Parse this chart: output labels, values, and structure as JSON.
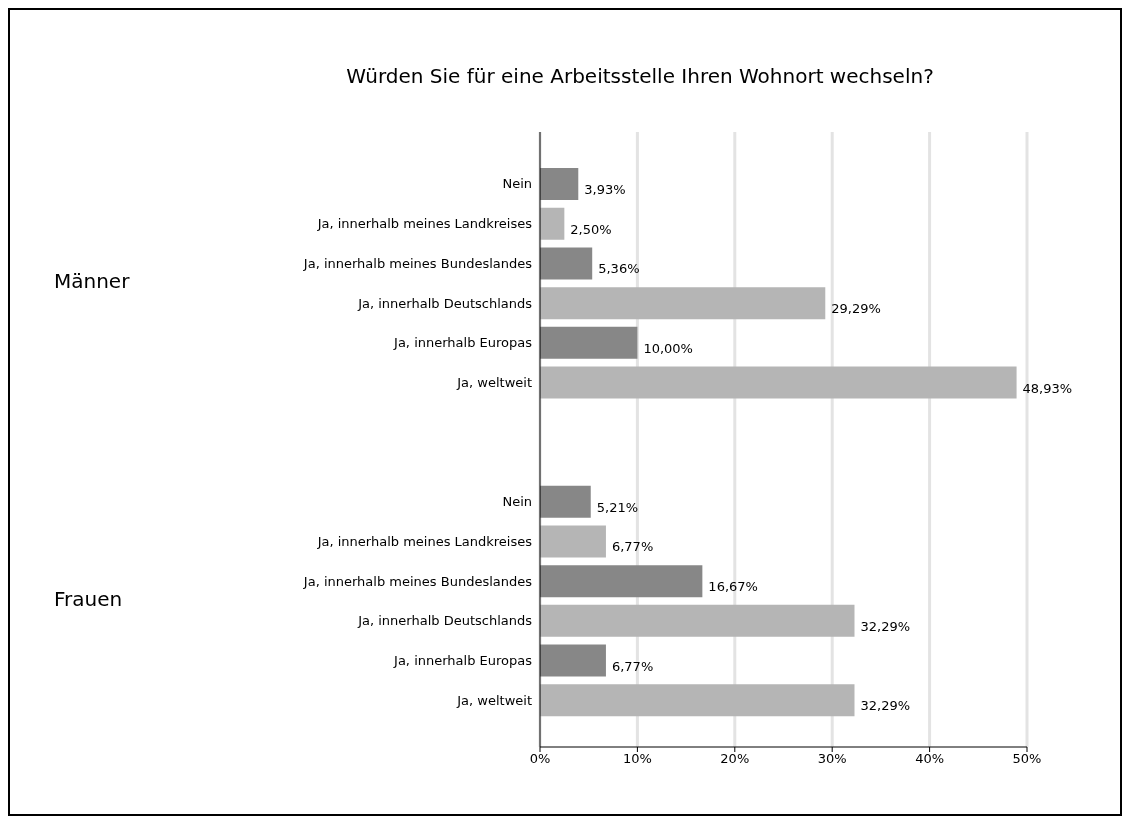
{
  "chart_data": {
    "type": "bar",
    "orientation": "horizontal",
    "title": "Würden Sie für eine Arbeitsstelle Ihren Wohnort wechseln?",
    "categories": [
      "Nein",
      "Ja, innerhalb meines Landkreises",
      "Ja, innerhalb meines Bundeslandes",
      "Ja, innerhalb Deutschlands",
      "Ja, innerhalb Europas",
      "Ja, weltweit",
      null,
      null,
      "Nein",
      "Ja, innerhalb meines Landkreises",
      "Ja, innerhalb meines Bundeslandes",
      "Ja, innerhalb Deutschlands",
      "Ja, innerhalb Europas",
      "Ja, weltweit"
    ],
    "values": [
      3.93,
      2.5,
      5.36,
      29.29,
      10.0,
      48.93,
      null,
      null,
      5.21,
      6.77,
      16.67,
      32.29,
      6.77,
      32.29
    ],
    "value_labels": [
      "3,93%",
      "2,50%",
      "5,36%",
      "29,29%",
      "10,00%",
      "48,93%",
      null,
      null,
      "5,21%",
      "6,77%",
      "16,67%",
      "32,29%",
      "6,77%",
      "32,29%"
    ],
    "colors": [
      "#878787",
      "#b5b5b5",
      "#878787",
      "#b5b5b5",
      "#878787",
      "#b5b5b5",
      null,
      null,
      "#878787",
      "#b5b5b5",
      "#878787",
      "#b5b5b5",
      "#878787",
      "#b5b5b5"
    ],
    "annotations": [
      "Männer",
      "Frauen"
    ],
    "xlim": [
      0,
      50
    ],
    "xticks": [
      {
        "value": 0,
        "label": "0%"
      },
      {
        "value": 10,
        "label": "10%"
      },
      {
        "value": 20,
        "label": "20%"
      },
      {
        "value": 30,
        "label": "30%"
      },
      {
        "value": 40,
        "label": "40%"
      },
      {
        "value": 50,
        "label": "50%"
      }
    ],
    "grid": "x"
  }
}
